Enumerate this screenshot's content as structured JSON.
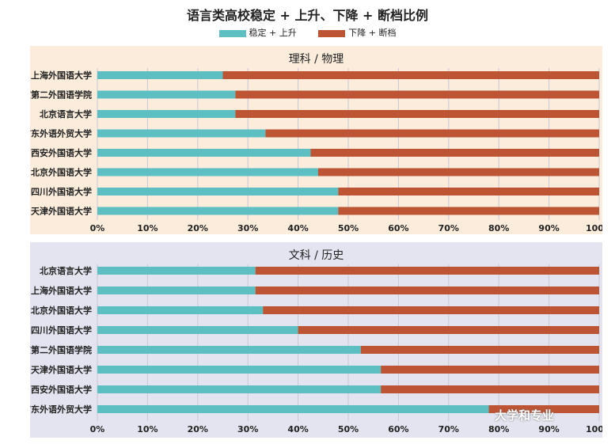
{
  "title": "语言类高校稳定 + 上升、下降 + 断档比例",
  "legend": [
    {
      "label": "稳定 + 上升",
      "color": "#5dbfc2"
    },
    {
      "label": "下降 + 断档",
      "color": "#bd5434"
    }
  ],
  "watermark": "大学和专业",
  "chart_data": [
    {
      "type": "bar",
      "orientation": "horizontal",
      "stacked": true,
      "title": "理科 / 物理",
      "categories": [
        "上海外国语大学",
        "北京第二外国语学院",
        "北京语言大学",
        "广东外语外贸大学",
        "西安外国语大学",
        "北京外国语大学",
        "四川外国语大学",
        "天津外国语大学"
      ],
      "series": [
        {
          "name": "稳定 + 上升",
          "values": [
            25,
            27.5,
            27.5,
            33.5,
            42.5,
            44,
            48,
            48
          ]
        },
        {
          "name": "下降 + 断档",
          "values": [
            75,
            72.5,
            72.5,
            66.5,
            57.5,
            56,
            52,
            52
          ]
        }
      ],
      "xticks": [
        "0%",
        "10%",
        "20%",
        "30%",
        "40%",
        "50%",
        "60%",
        "70%",
        "80%",
        "90%",
        "100%"
      ],
      "xlim": [
        0,
        100
      ]
    },
    {
      "type": "bar",
      "orientation": "horizontal",
      "stacked": true,
      "title": "文科 / 历史",
      "categories": [
        "北京语言大学",
        "上海外国语大学",
        "北京外国语大学",
        "四川外国语大学",
        "北京第二外国语学院",
        "天津外国语大学",
        "西安外国语大学",
        "广东外语外贸大学"
      ],
      "series": [
        {
          "name": "稳定 + 上升",
          "values": [
            31.5,
            31.5,
            33,
            40,
            52.5,
            56.5,
            56.5,
            78
          ]
        },
        {
          "name": "下降 + 断档",
          "values": [
            68.5,
            68.5,
            67,
            60,
            47.5,
            43.5,
            43.5,
            22
          ]
        }
      ],
      "xticks": [
        "0%",
        "10%",
        "20%",
        "30%",
        "40%",
        "50%",
        "60%",
        "70%",
        "80%",
        "90%",
        "100%"
      ],
      "xlim": [
        0,
        100
      ]
    }
  ]
}
